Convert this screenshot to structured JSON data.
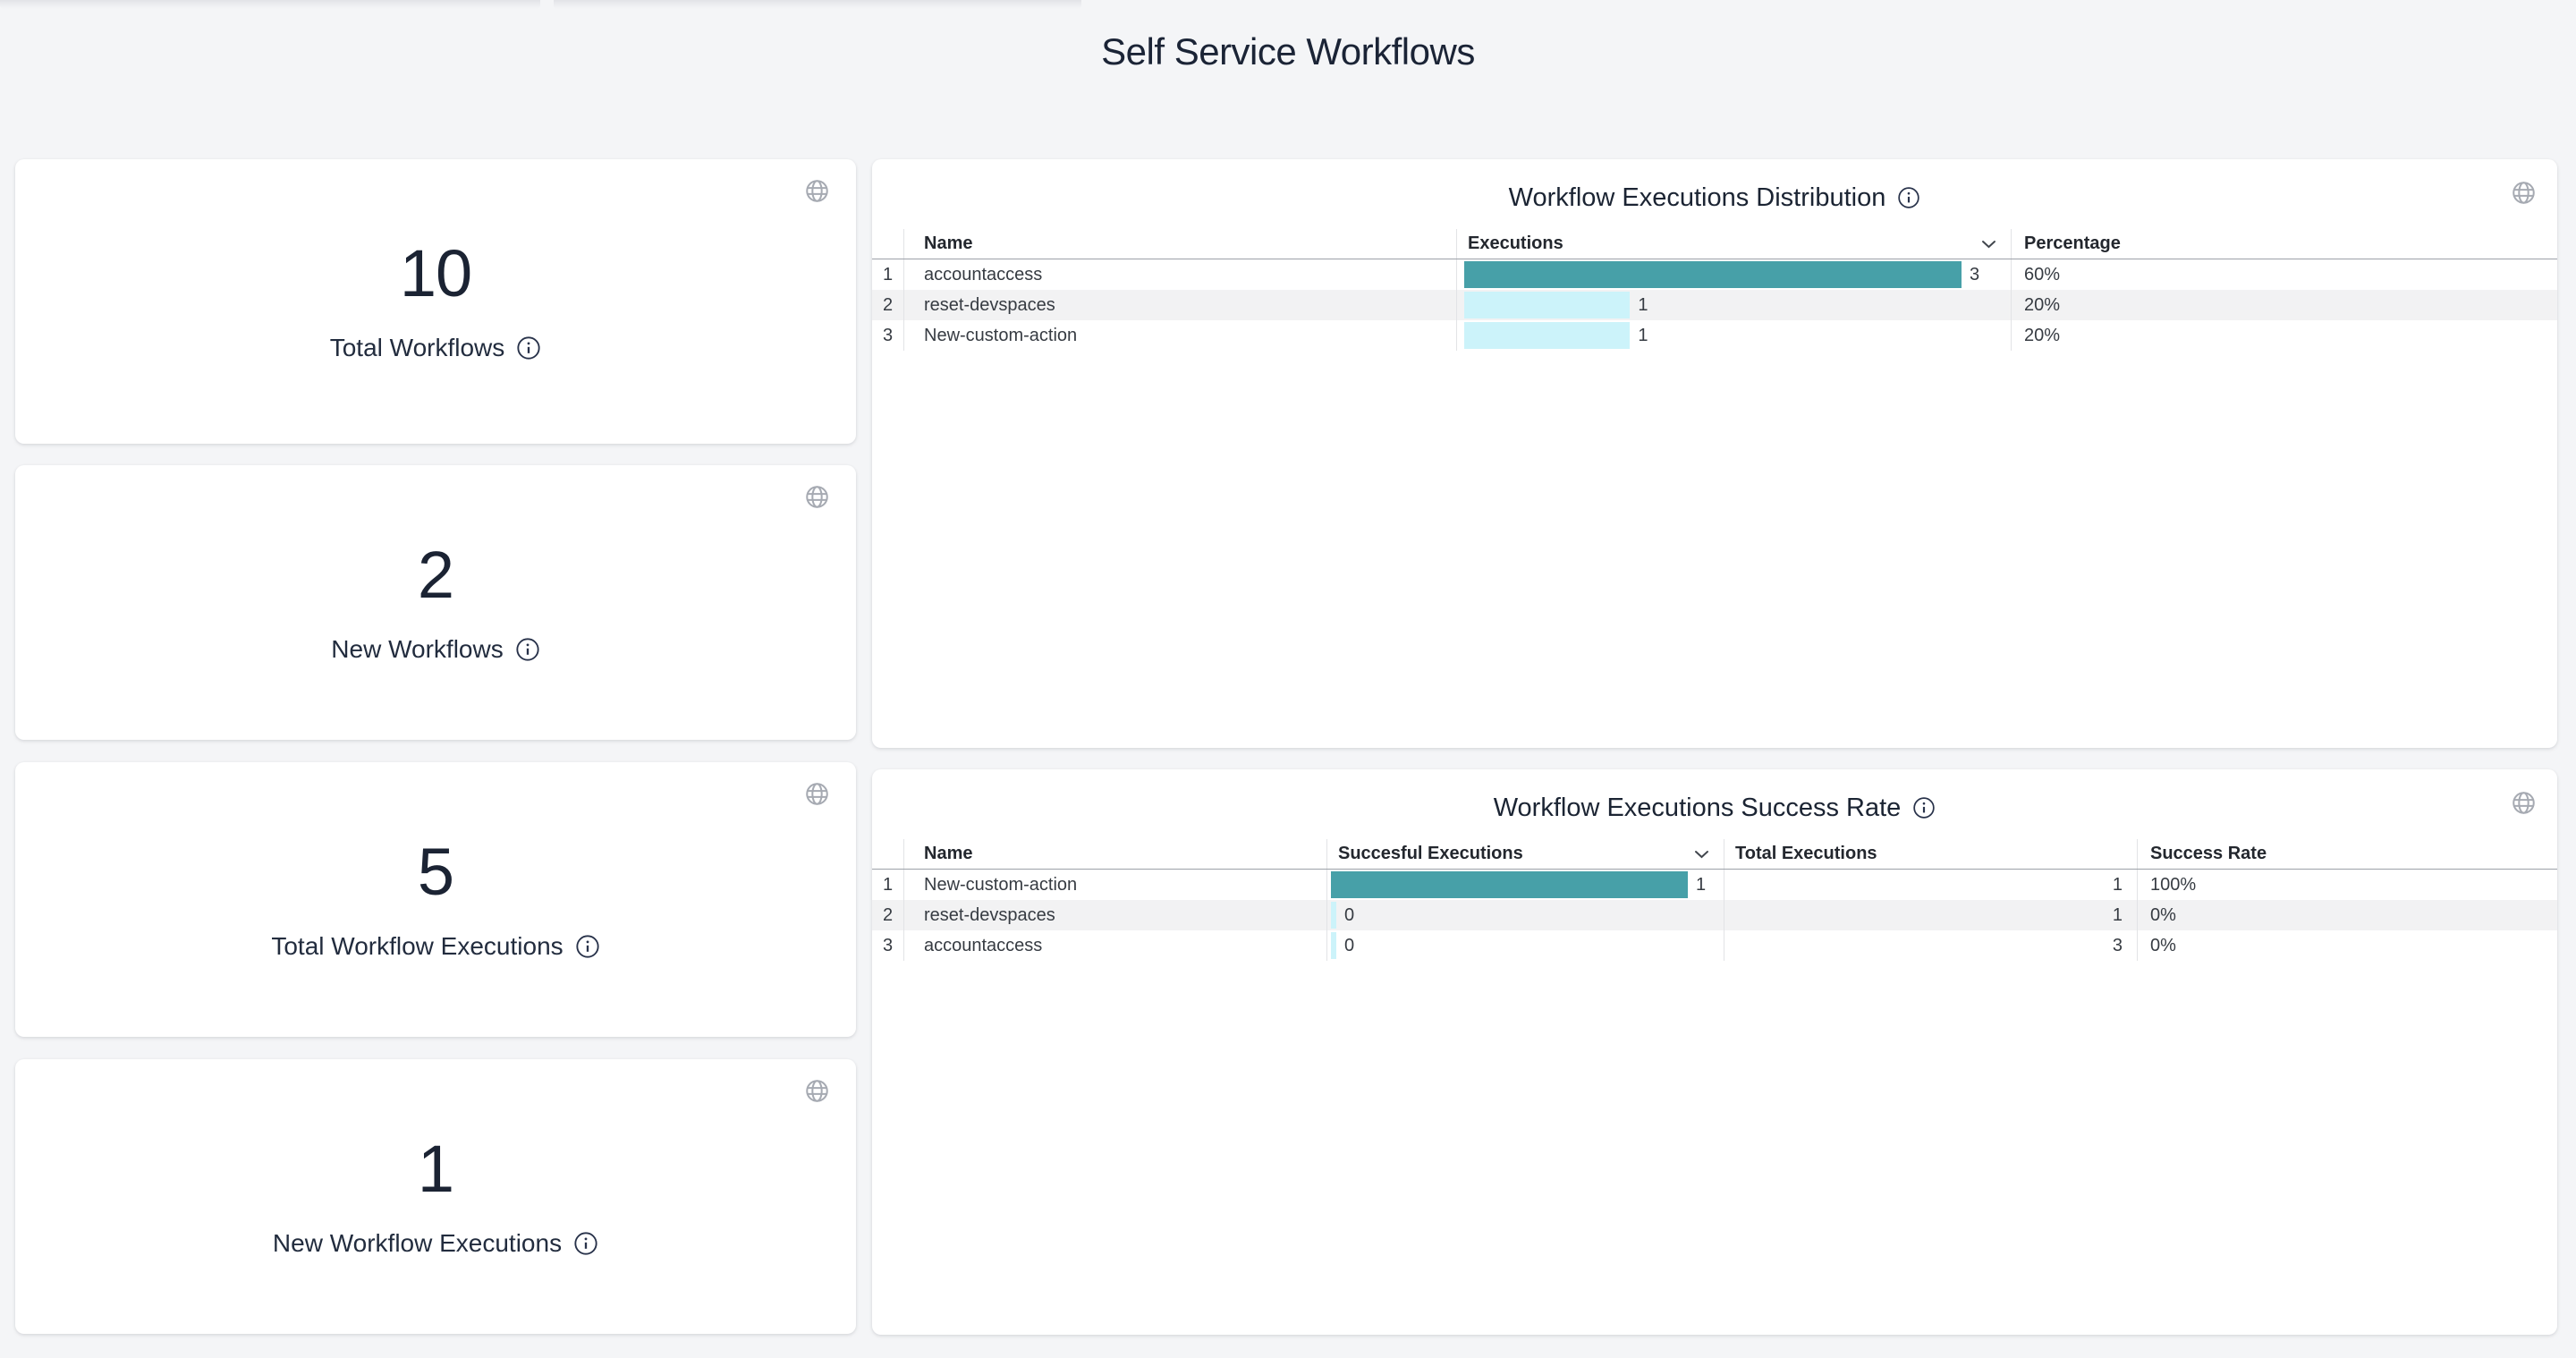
{
  "page": {
    "title": "Self Service Workflows"
  },
  "stat_cards": [
    {
      "value": "10",
      "label": "Total Workflows"
    },
    {
      "value": "2",
      "label": "New Workflows"
    },
    {
      "value": "5",
      "label": "Total Workflow Executions"
    },
    {
      "value": "1",
      "label": "New Workflow Executions"
    }
  ],
  "tables": [
    {
      "title": "Workflow Executions Distribution",
      "columns": [
        "",
        "Name",
        "Executions",
        "Percentage"
      ],
      "sorted_by": "Executions",
      "rows": [
        {
          "index": "1",
          "name": "accountaccess",
          "executions": 3,
          "percentage": "60%"
        },
        {
          "index": "2",
          "name": "reset-devspaces",
          "executions": 1,
          "percentage": "20%"
        },
        {
          "index": "3",
          "name": "New-custom-action",
          "executions": 1,
          "percentage": "20%"
        }
      ]
    },
    {
      "title": "Workflow Executions Success Rate",
      "columns": [
        "",
        "Name",
        "Succesful Executions",
        "Total Executions",
        "Success Rate"
      ],
      "sorted_by": "Succesful Executions",
      "rows": [
        {
          "index": "1",
          "name": "New-custom-action",
          "successful": 1,
          "total": 1,
          "success_rate": "100%"
        },
        {
          "index": "2",
          "name": "reset-devspaces",
          "successful": 0,
          "total": 1,
          "success_rate": "0%"
        },
        {
          "index": "3",
          "name": "accountaccess",
          "successful": 0,
          "total": 3,
          "success_rate": "0%"
        }
      ]
    }
  ],
  "chart_data": [
    {
      "type": "table",
      "title": "Workflow Executions Distribution",
      "categories": [
        "accountaccess",
        "reset-devspaces",
        "New-custom-action"
      ],
      "series": [
        {
          "name": "Executions",
          "values": [
            3,
            1,
            1
          ]
        },
        {
          "name": "Percentage",
          "values": [
            "60%",
            "20%",
            "20%"
          ]
        }
      ]
    },
    {
      "type": "table",
      "title": "Workflow Executions Success Rate",
      "categories": [
        "New-custom-action",
        "reset-devspaces",
        "accountaccess"
      ],
      "series": [
        {
          "name": "Succesful Executions",
          "values": [
            1,
            0,
            0
          ]
        },
        {
          "name": "Total Executions",
          "values": [
            1,
            1,
            3
          ]
        },
        {
          "name": "Success Rate",
          "values": [
            "100%",
            "0%",
            "0%"
          ]
        }
      ]
    }
  ],
  "icons": {
    "globe": "globe-icon",
    "info": "info-icon",
    "sort": "chevron-down-icon"
  },
  "colors": {
    "bar_max": "#47a0a8",
    "bar_min": "#ccf3fa",
    "stripe": "#f2f2f3",
    "title_text": "#1b2436",
    "page_bg": "#f4f5f7"
  }
}
